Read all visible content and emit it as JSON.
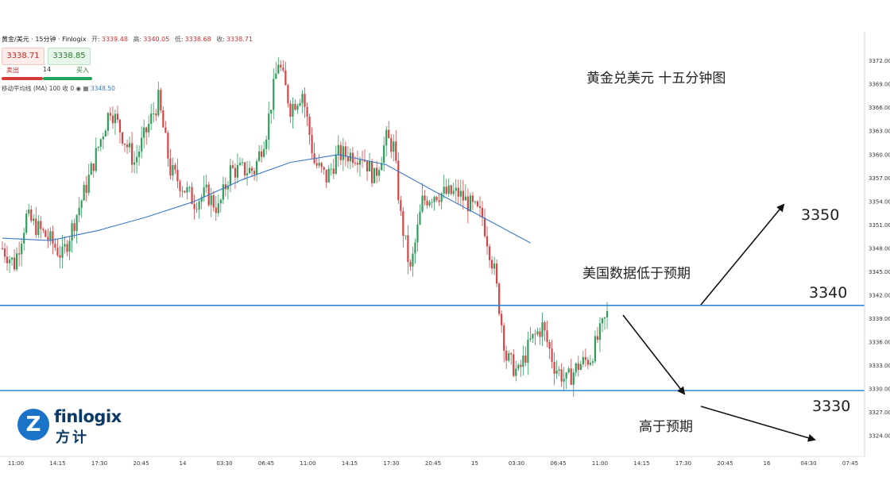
{
  "header": {
    "symbol": "黄金/美元 · 15分钟 · Finlogix",
    "open_label": "开:",
    "open": "3339.48",
    "high_label": "高:",
    "high": "3340.05",
    "low_label": "低:",
    "low": "3338.68",
    "close_label": "收:",
    "close": "3338.71"
  },
  "trade_panel": {
    "sell_price": "3338.71",
    "buy_price": "3338.85",
    "sell_label": "卖出",
    "spread": "14",
    "buy_label": "买入"
  },
  "indicator": {
    "name": "移动平均线 (MA)",
    "params": "100 收 0",
    "value": "3348.50"
  },
  "annotations": {
    "title": "黄金兑美元 十五分钟图",
    "scenario_up": "美国数据低于预期",
    "scenario_down": "高于预期",
    "target_up": "3350",
    "level_mid": "3340",
    "target_down": "3330"
  },
  "brand": {
    "icon_letter": "Z",
    "name_en": "finlogix",
    "name_zh": "方计"
  },
  "colors": {
    "up": "#2e9e5b",
    "down": "#d64545",
    "ma": "#3a7ac8",
    "level_line": "#2f86d6"
  },
  "chart_data": {
    "type": "candlestick",
    "ylim": [
      3322.5,
      3374.5
    ],
    "y_ticks": [
      "3372.00",
      "3369.00",
      "3366.00",
      "3363.00",
      "3360.00",
      "3357.00",
      "3354.00",
      "3351.00",
      "3348.00",
      "3345.00",
      "3342.00",
      "3339.00",
      "3336.00",
      "3333.00",
      "3330.00",
      "3327.00",
      "3324.00"
    ],
    "x_ticks": [
      "11:00",
      "14:15",
      "17:30",
      "20:45",
      "14",
      "03:30",
      "06:45",
      "11:00",
      "14:15",
      "17:30",
      "20:45",
      "15",
      "03:30",
      "06:45",
      "11:00",
      "14:15",
      "17:30",
      "20:45",
      "16",
      "04:30",
      "07:45"
    ],
    "horizontal_levels": [
      3340.7,
      3329.8
    ],
    "ma_line": [
      {
        "bar": 0,
        "v": 3349.3
      },
      {
        "bar": 20,
        "v": 3349.0
      },
      {
        "bar": 40,
        "v": 3350.3
      },
      {
        "bar": 60,
        "v": 3352.0
      },
      {
        "bar": 80,
        "v": 3354.0
      },
      {
        "bar": 100,
        "v": 3356.8
      },
      {
        "bar": 120,
        "v": 3359.0
      },
      {
        "bar": 140,
        "v": 3360.0
      },
      {
        "bar": 160,
        "v": 3358.7
      },
      {
        "bar": 180,
        "v": 3355.3
      },
      {
        "bar": 200,
        "v": 3352.0
      },
      {
        "bar": 220,
        "v": 3348.7
      }
    ],
    "price_path": [
      [
        0,
        3348
      ],
      [
        5,
        3346
      ],
      [
        10,
        3352
      ],
      [
        20,
        3349
      ],
      [
        25,
        3347
      ],
      [
        35,
        3356
      ],
      [
        45,
        3366
      ],
      [
        55,
        3359
      ],
      [
        65,
        3367
      ],
      [
        70,
        3358
      ],
      [
        80,
        3354
      ],
      [
        85,
        3355
      ],
      [
        90,
        3353
      ],
      [
        95,
        3358
      ],
      [
        105,
        3358
      ],
      [
        110,
        3363
      ],
      [
        115,
        3372
      ],
      [
        120,
        3366
      ],
      [
        125,
        3368
      ],
      [
        130,
        3359
      ],
      [
        135,
        3357
      ],
      [
        140,
        3360
      ],
      [
        150,
        3360
      ],
      [
        155,
        3357
      ],
      [
        160,
        3362
      ],
      [
        163,
        3361
      ],
      [
        166,
        3352
      ],
      [
        170,
        3345
      ],
      [
        175,
        3354
      ],
      [
        180,
        3355
      ],
      [
        190,
        3355
      ],
      [
        200,
        3352
      ],
      [
        205,
        3345
      ],
      [
        210,
        3334
      ],
      [
        215,
        3332
      ],
      [
        220,
        3336
      ],
      [
        225,
        3338
      ],
      [
        230,
        3333
      ],
      [
        235,
        3331
      ],
      [
        240,
        3333
      ],
      [
        245,
        3334
      ],
      [
        252,
        3339.5
      ]
    ],
    "bars_total": 253
  }
}
